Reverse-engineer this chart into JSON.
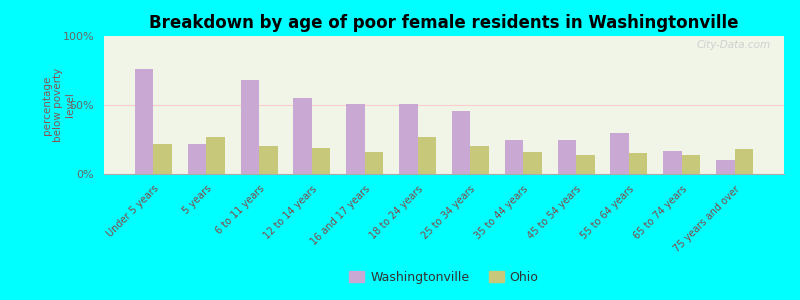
{
  "title": "Breakdown by age of poor female residents in Washingtonville",
  "categories": [
    "Under 5 years",
    "5 years",
    "6 to 11 years",
    "12 to 14 years",
    "16 and 17 years",
    "18 to 24 years",
    "25 to 34 years",
    "35 to 44 years",
    "45 to 54 years",
    "55 to 64 years",
    "65 to 74 years",
    "75 years and over"
  ],
  "washingtonville": [
    76,
    22,
    68,
    55,
    51,
    51,
    46,
    25,
    25,
    30,
    17,
    10
  ],
  "ohio": [
    22,
    27,
    20,
    19,
    16,
    27,
    20,
    16,
    14,
    15,
    14,
    18
  ],
  "color_washingtonville": "#c9a8d4",
  "color_ohio": "#c8c87a",
  "ylabel": "percentage\nbelow poverty\nlevel",
  "ylim": [
    0,
    100
  ],
  "yticks": [
    0,
    50,
    100
  ],
  "ytick_labels": [
    "0%",
    "50%",
    "100%"
  ],
  "background_color": "#00ffff",
  "plot_bg": "#f0f5e8",
  "watermark": "City-Data.com",
  "legend_washingtonville": "Washingtonville",
  "legend_ohio": "Ohio",
  "hline_color": "#ffcccc",
  "spine_color": "#aaaaaa",
  "tick_label_color": "#884444",
  "ylabel_color": "#885555"
}
